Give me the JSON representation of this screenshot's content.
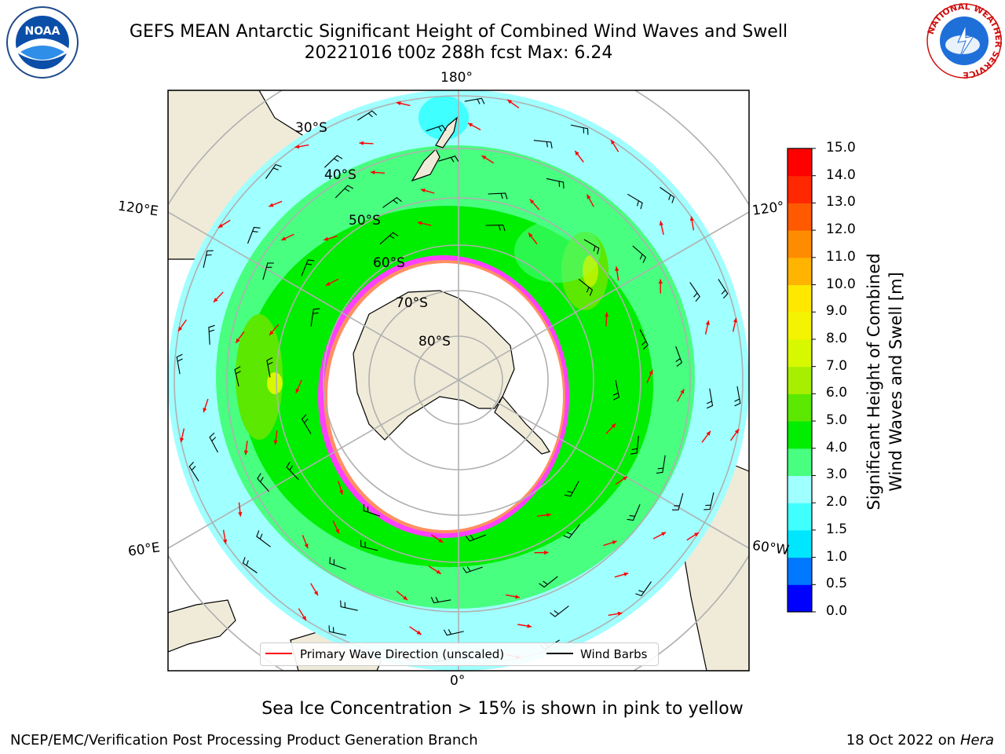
{
  "header": {
    "title_line1": "GEFS MEAN Antarctic Significant Height of Combined Wind Waves and Swell",
    "title_line2": "20221016 t00z 288h fcst   Max: 6.24"
  },
  "map": {
    "projection": "south-polar-stereographic",
    "longitude_labels": {
      "top": "180°",
      "bottom": "0°",
      "upper_left": "120°E",
      "lower_left": "60°E",
      "upper_right": "120°",
      "lower_right": "60°W"
    },
    "latitude_labels": [
      "30°S",
      "40°S",
      "50°S",
      "60°S",
      "70°S",
      "80°S"
    ],
    "colors": {
      "land": "#efebd8",
      "ocean": "#ffffff",
      "ice_pink": "#ff40ff",
      "ice_orange": "#ffb020",
      "arrow": "#ff0000",
      "barb": "#000000",
      "grid": "#b0b0b0"
    }
  },
  "legend": {
    "wave_direction_label": "Primary Wave Direction (unscaled)",
    "wind_barbs_label": "Wind Barbs",
    "wave_direction_color": "#ff0000",
    "wind_barbs_color": "#000000"
  },
  "colorbar": {
    "title_line1": "Significant Height of Combined",
    "title_line2": "Wind Waves and Swell [m]",
    "ticks": [
      "15.0",
      "14.0",
      "13.0",
      "12.0",
      "11.0",
      "10.0",
      "9.0",
      "8.0",
      "7.0",
      "6.0",
      "5.0",
      "4.0",
      "3.0",
      "2.0",
      "1.5",
      "1.0",
      "0.5",
      "0.0"
    ],
    "colors_bottom_to_top": [
      "#0000ff",
      "#0078ff",
      "#00e6ff",
      "#40ffff",
      "#a0ffff",
      "#48ff80",
      "#00ee00",
      "#5ce800",
      "#a8ee00",
      "#d8f800",
      "#f4f400",
      "#ffe800",
      "#ffb400",
      "#ff8c00",
      "#ff5a00",
      "#ff2800",
      "#ff0000"
    ]
  },
  "logos": {
    "left": "NOAA",
    "right_ring_text": "NATIONAL WEATHER SERVICE"
  },
  "footer": {
    "note": "Sea Ice Concentration > 15% is shown in pink to yellow",
    "left": "NCEP/EMC/Verification Post Processing Product Generation Branch",
    "right_date": "18 Oct 2022 on ",
    "right_machine": "Hera"
  }
}
